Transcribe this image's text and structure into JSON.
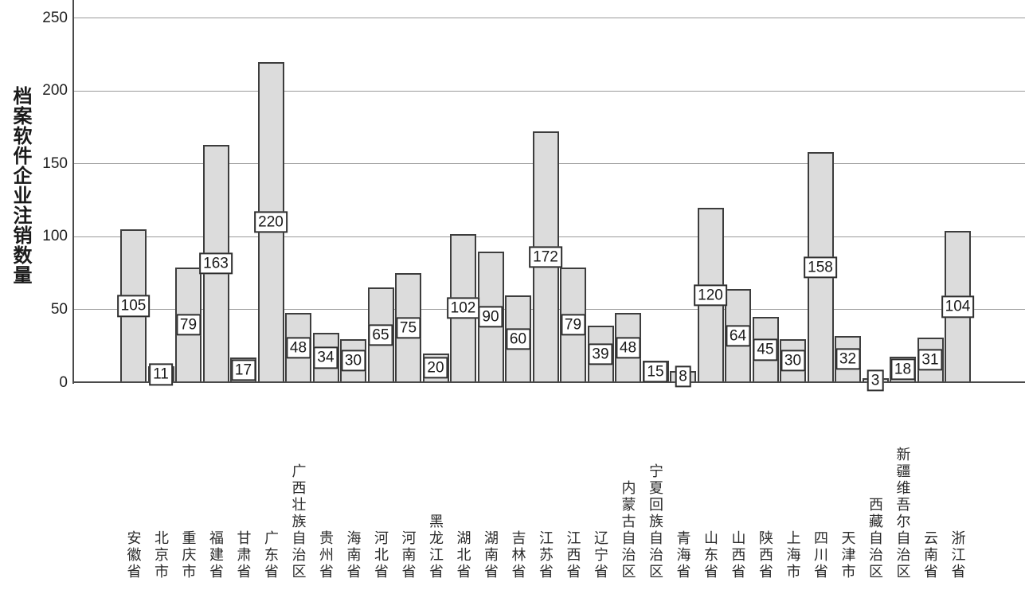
{
  "chart_data": {
    "type": "bar",
    "title": "",
    "ylabel": "档案软件企业注销数量",
    "xlabel": "",
    "ylim": [
      0,
      262
    ],
    "yticks": [
      0,
      50,
      100,
      150,
      200,
      250
    ],
    "grid": "horizontal",
    "legend": "none",
    "bar_fill_color": "#dcdcdc",
    "bar_border_color": "#3d3d3d",
    "gridline_color": "#9a9a9a",
    "axis_color": "#4a4a4a",
    "value_labels_boxed": true,
    "categories": [
      "安徽省",
      "北京市",
      "重庆市",
      "福建省",
      "甘肃省",
      "广东省",
      "广西壮族自治区",
      "贵州省",
      "海南省",
      "河北省",
      "河南省",
      "黑龙江省",
      "湖北省",
      "湖南省",
      "吉林省",
      "江苏省",
      "江西省",
      "辽宁省",
      "内蒙古自治区",
      "宁夏回族自治区",
      "青海省",
      "山东省",
      "山西省",
      "陕西省",
      "上海市",
      "四川省",
      "天津市",
      "西藏自治区",
      "新疆维吾尔自治区",
      "云南省",
      "浙江省"
    ],
    "values": [
      105,
      11,
      79,
      163,
      17,
      220,
      48,
      34,
      30,
      65,
      75,
      20,
      102,
      90,
      60,
      172,
      79,
      39,
      48,
      15,
      8,
      120,
      64,
      45,
      30,
      158,
      32,
      3,
      18,
      31,
      104
    ]
  }
}
